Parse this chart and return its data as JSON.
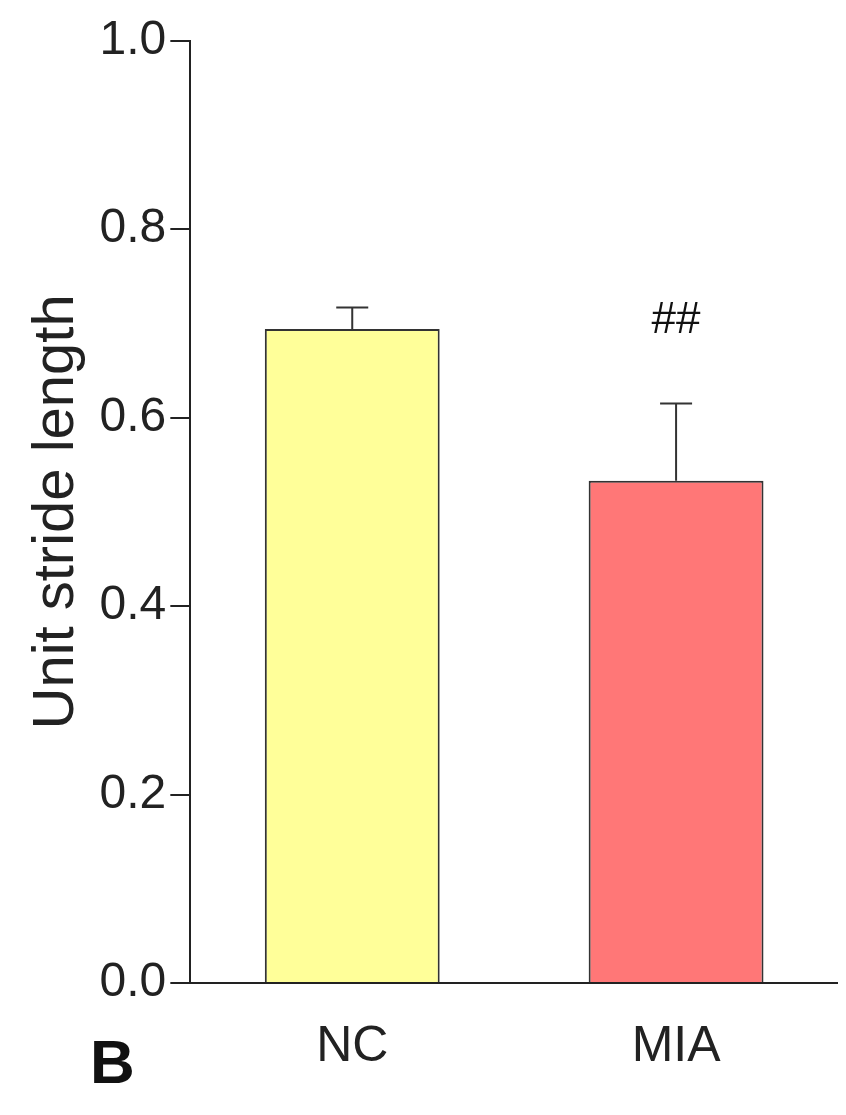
{
  "chart_data": {
    "type": "bar",
    "ylabel": "Unit stride length",
    "categories": [
      "NC",
      "MIA"
    ],
    "values": [
      0.694,
      0.533
    ],
    "colors": [
      "#ffff99",
      "#ff7777"
    ],
    "errors": [
      [
        0.694,
        0.717
      ],
      [
        0.533,
        0.615
      ]
    ],
    "ylim": [
      0,
      1.0
    ],
    "yticks": [
      {
        "value": 0,
        "label": "0.0"
      },
      {
        "value": 0.2,
        "label": "0.2"
      },
      {
        "value": 0.4,
        "label": "0.4"
      },
      {
        "value": 0.6,
        "label": "0.6"
      },
      {
        "value": 0.8,
        "label": "0.8"
      },
      {
        "value": 1.0,
        "label": "1.0"
      }
    ],
    "grid": false,
    "legend": false,
    "annotations": [
      "##",
      "B"
    ]
  }
}
